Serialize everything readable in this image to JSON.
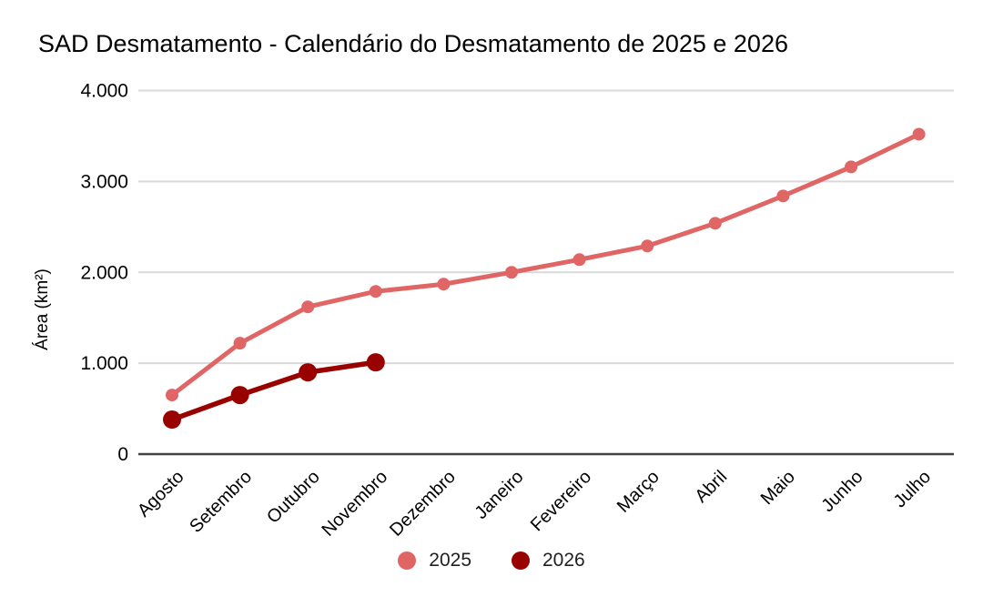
{
  "chart_data": {
    "type": "line",
    "title": "SAD Desmatamento - Calendário do Desmatamento de 2025 e 2026",
    "categories": [
      "Agosto",
      "Setembro",
      "Outubro",
      "Novembro",
      "Dezembro",
      "Janeiro",
      "Fevereiro",
      "Março",
      "Abril",
      "Maio",
      "Junho",
      "Julho"
    ],
    "series": [
      {
        "name": "2025",
        "color": "#e06666",
        "line_width": 5,
        "point_radius": 7,
        "values": [
          650,
          1220,
          1620,
          1790,
          1870,
          2000,
          2140,
          2290,
          2540,
          2840,
          3160,
          3520
        ]
      },
      {
        "name": "2026",
        "color": "#990000",
        "line_width": 5.5,
        "point_radius": 10,
        "values": [
          380,
          650,
          900,
          1010
        ]
      }
    ],
    "xlabel": "",
    "ylabel": "Área (km²)",
    "ylim": [
      0,
      4000
    ],
    "y_ticks": [
      {
        "value": 0,
        "label": "0"
      },
      {
        "value": 1000,
        "label": "1.000"
      },
      {
        "value": 2000,
        "label": "2.000"
      },
      {
        "value": 3000,
        "label": "3.000"
      },
      {
        "value": 4000,
        "label": "4.000"
      }
    ],
    "grid": true,
    "legend_position": "bottom"
  },
  "colors": {
    "background": "#ffffff",
    "gridline": "#d9d9d9",
    "zero_line": "#424242",
    "axis_text": "#000000",
    "legend_text": "#212121"
  }
}
